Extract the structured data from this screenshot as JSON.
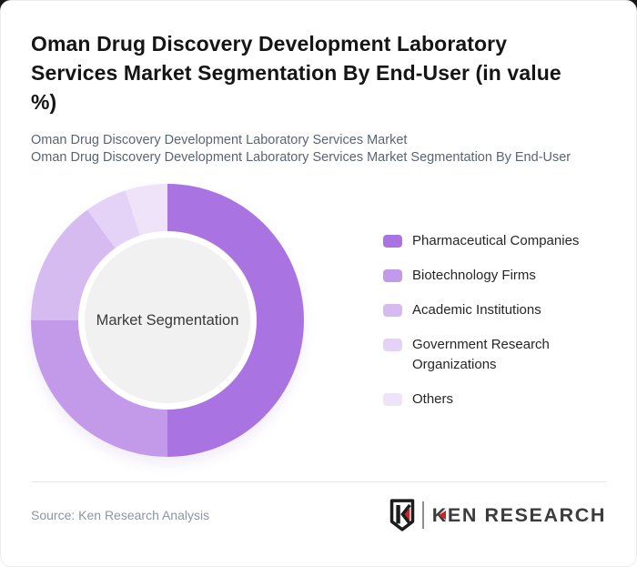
{
  "page": {
    "title_lines": [
      "Oman Drug Discovery Development Laboratory",
      "Services Market Segmentation By End-User (in value",
      "%)"
    ],
    "subtitle_lines": [
      "Oman Drug Discovery Development Laboratory Services Market",
      "Oman Drug Discovery Development Laboratory Services Market Segmentation By End-User"
    ]
  },
  "chart_data": {
    "type": "pie",
    "variant": "donut",
    "title": "Oman Drug Discovery Development Laboratory Services Market Segmentation By End-User (in value %)",
    "center_label": "Market Segmentation",
    "unit": "percent of value",
    "start_angle_deg": 0,
    "direction": "clockwise",
    "legend_position": "right",
    "categories": [
      "Pharmaceutical Companies",
      "Biotechnology Firms",
      "Academic Institutions",
      "Government Research Organizations",
      "Others"
    ],
    "values": [
      50,
      25,
      15,
      5,
      5
    ],
    "colors": [
      "#a974e2",
      "#c29ae9",
      "#d6bbf1",
      "#e5d3f7",
      "#efe3fa"
    ],
    "inner_circle_color": "#f1f1f2"
  },
  "footer": {
    "source": "Source: Ken Research Analysis",
    "logo_text": "KEN RESEARCH",
    "logo_colors": {
      "accent": "#cc2329",
      "dark": "#1d1d1d",
      "text": "#3c3c3c"
    }
  }
}
